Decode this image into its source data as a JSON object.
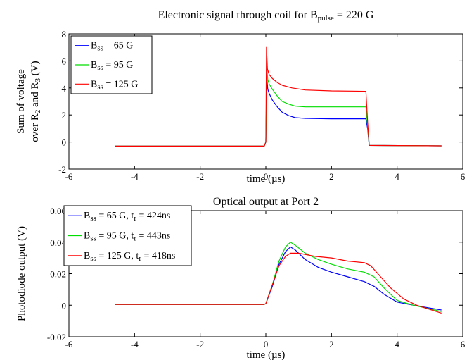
{
  "chart_data": [
    {
      "type": "line",
      "title": {
        "main": "Electronic signal through coil for B",
        "sub": "pulse",
        "tail": " = 220 G"
      },
      "xlabel": "time (µs)",
      "ylabel": {
        "line1": "Sum of voltage",
        "line2_parts": [
          {
            "t": "over R",
            "sub": false
          },
          {
            "t": "2",
            "sub": true
          },
          {
            "t": " and R",
            "sub": false
          },
          {
            "t": "3",
            "sub": true
          },
          {
            "t": " (V)",
            "sub": false
          }
        ]
      },
      "xlim": [
        -6,
        6
      ],
      "ylim": [
        -2,
        8
      ],
      "xticks": [
        "-6",
        "-4",
        "-2",
        "0",
        "2",
        "4",
        "6"
      ],
      "yticks": [
        "-2",
        "0",
        "2",
        "4",
        "6",
        "8"
      ],
      "legend_position": "top-left",
      "grid": false,
      "series": [
        {
          "label": [
            {
              "t": "B",
              "sub": false
            },
            {
              "t": "ss",
              "sub": true
            },
            {
              "t": " = 65 G",
              "sub": false
            }
          ],
          "color": "#0000ff",
          "points": [
            [
              -4.6,
              -0.3
            ],
            [
              -0.05,
              -0.3
            ],
            [
              0.0,
              0.0
            ],
            [
              0.03,
              4.7
            ],
            [
              0.06,
              3.9
            ],
            [
              0.1,
              3.6
            ],
            [
              0.2,
              3.1
            ],
            [
              0.35,
              2.6
            ],
            [
              0.5,
              2.2
            ],
            [
              0.7,
              1.95
            ],
            [
              0.9,
              1.8
            ],
            [
              1.2,
              1.75
            ],
            [
              2.0,
              1.72
            ],
            [
              3.05,
              1.72
            ],
            [
              3.1,
              1.0
            ],
            [
              3.15,
              -0.25
            ],
            [
              5.35,
              -0.28
            ]
          ]
        },
        {
          "label": [
            {
              "t": "B",
              "sub": false
            },
            {
              "t": "ss",
              "sub": true
            },
            {
              "t": " = 95 G",
              "sub": false
            }
          ],
          "color": "#00dd00",
          "points": [
            [
              -4.6,
              -0.3
            ],
            [
              -0.05,
              -0.3
            ],
            [
              0.0,
              0.0
            ],
            [
              0.03,
              5.5
            ],
            [
              0.06,
              4.6
            ],
            [
              0.1,
              4.3
            ],
            [
              0.2,
              3.9
            ],
            [
              0.35,
              3.4
            ],
            [
              0.5,
              3.0
            ],
            [
              0.7,
              2.8
            ],
            [
              0.9,
              2.65
            ],
            [
              1.2,
              2.6
            ],
            [
              2.0,
              2.6
            ],
            [
              3.05,
              2.6
            ],
            [
              3.1,
              1.2
            ],
            [
              3.15,
              -0.25
            ],
            [
              5.35,
              -0.28
            ]
          ]
        },
        {
          "label": [
            {
              "t": "B",
              "sub": false
            },
            {
              "t": "ss",
              "sub": true
            },
            {
              "t": " = 125 G",
              "sub": false
            }
          ],
          "color": "#ff0000",
          "points": [
            [
              -4.6,
              -0.3
            ],
            [
              -0.05,
              -0.3
            ],
            [
              0.0,
              0.0
            ],
            [
              0.02,
              7.0
            ],
            [
              0.05,
              5.4
            ],
            [
              0.1,
              5.0
            ],
            [
              0.2,
              4.7
            ],
            [
              0.35,
              4.4
            ],
            [
              0.5,
              4.2
            ],
            [
              0.8,
              4.0
            ],
            [
              1.2,
              3.85
            ],
            [
              2.0,
              3.78
            ],
            [
              3.05,
              3.75
            ],
            [
              3.1,
              1.5
            ],
            [
              3.15,
              -0.25
            ],
            [
              5.35,
              -0.28
            ]
          ]
        }
      ]
    },
    {
      "type": "line",
      "title": {
        "main": "Optical output at Port 2",
        "sub": "",
        "tail": ""
      },
      "xlabel": "time (µs)",
      "ylabel": {
        "line1": "Photodiode output (V)",
        "line2_parts": []
      },
      "xlim": [
        -6,
        6
      ],
      "ylim": [
        -0.02,
        0.06
      ],
      "xticks": [
        "-6",
        "-4",
        "-2",
        "0",
        "2",
        "4",
        "6"
      ],
      "yticks": [
        "-0.02",
        "0",
        "0.02",
        "0.04",
        "0.06"
      ],
      "legend_position": "top-left",
      "grid": false,
      "series": [
        {
          "label": [
            {
              "t": "B",
              "sub": false
            },
            {
              "t": "ss",
              "sub": true
            },
            {
              "t": " = 65 G, t",
              "sub": false
            },
            {
              "t": "r",
              "sub": true
            },
            {
              "t": " = 424ns",
              "sub": false
            }
          ],
          "color": "#0000ff",
          "points": [
            [
              -4.6,
              0.0005
            ],
            [
              -0.05,
              0.0005
            ],
            [
              0.0,
              0.001
            ],
            [
              0.2,
              0.012
            ],
            [
              0.4,
              0.026
            ],
            [
              0.6,
              0.034
            ],
            [
              0.75,
              0.037
            ],
            [
              0.9,
              0.035
            ],
            [
              1.2,
              0.029
            ],
            [
              1.6,
              0.024
            ],
            [
              2.0,
              0.021
            ],
            [
              2.5,
              0.018
            ],
            [
              3.0,
              0.015
            ],
            [
              3.3,
              0.012
            ],
            [
              3.6,
              0.007
            ],
            [
              4.0,
              0.002
            ],
            [
              4.5,
              0.0
            ],
            [
              5.35,
              -0.003
            ]
          ]
        },
        {
          "label": [
            {
              "t": "B",
              "sub": false
            },
            {
              "t": "ss",
              "sub": true
            },
            {
              "t": " = 95 G, t",
              "sub": false
            },
            {
              "t": "r",
              "sub": true
            },
            {
              "t": " = 443ns",
              "sub": false
            }
          ],
          "color": "#00dd00",
          "points": [
            [
              -4.6,
              0.0005
            ],
            [
              -0.05,
              0.0005
            ],
            [
              0.0,
              0.001
            ],
            [
              0.2,
              0.013
            ],
            [
              0.4,
              0.028
            ],
            [
              0.6,
              0.037
            ],
            [
              0.75,
              0.04
            ],
            [
              0.9,
              0.038
            ],
            [
              1.2,
              0.033
            ],
            [
              1.6,
              0.029
            ],
            [
              2.0,
              0.026
            ],
            [
              2.5,
              0.023
            ],
            [
              3.0,
              0.021
            ],
            [
              3.3,
              0.018
            ],
            [
              3.6,
              0.011
            ],
            [
              4.0,
              0.003
            ],
            [
              4.5,
              0.0
            ],
            [
              5.35,
              -0.004
            ]
          ]
        },
        {
          "label": [
            {
              "t": "B",
              "sub": false
            },
            {
              "t": "ss",
              "sub": true
            },
            {
              "t": " = 125 G, t",
              "sub": false
            },
            {
              "t": "r",
              "sub": true
            },
            {
              "t": " = 418ns",
              "sub": false
            }
          ],
          "color": "#ff0000",
          "points": [
            [
              -4.6,
              0.0005
            ],
            [
              -0.05,
              0.0005
            ],
            [
              0.0,
              0.001
            ],
            [
              0.2,
              0.013
            ],
            [
              0.4,
              0.025
            ],
            [
              0.6,
              0.031
            ],
            [
              0.75,
              0.033
            ],
            [
              1.0,
              0.033
            ],
            [
              1.5,
              0.031
            ],
            [
              2.0,
              0.03
            ],
            [
              2.5,
              0.028
            ],
            [
              3.0,
              0.027
            ],
            [
              3.2,
              0.025
            ],
            [
              3.5,
              0.018
            ],
            [
              3.8,
              0.011
            ],
            [
              4.2,
              0.004
            ],
            [
              4.6,
              0.0
            ],
            [
              5.35,
              -0.005
            ]
          ]
        }
      ]
    }
  ]
}
